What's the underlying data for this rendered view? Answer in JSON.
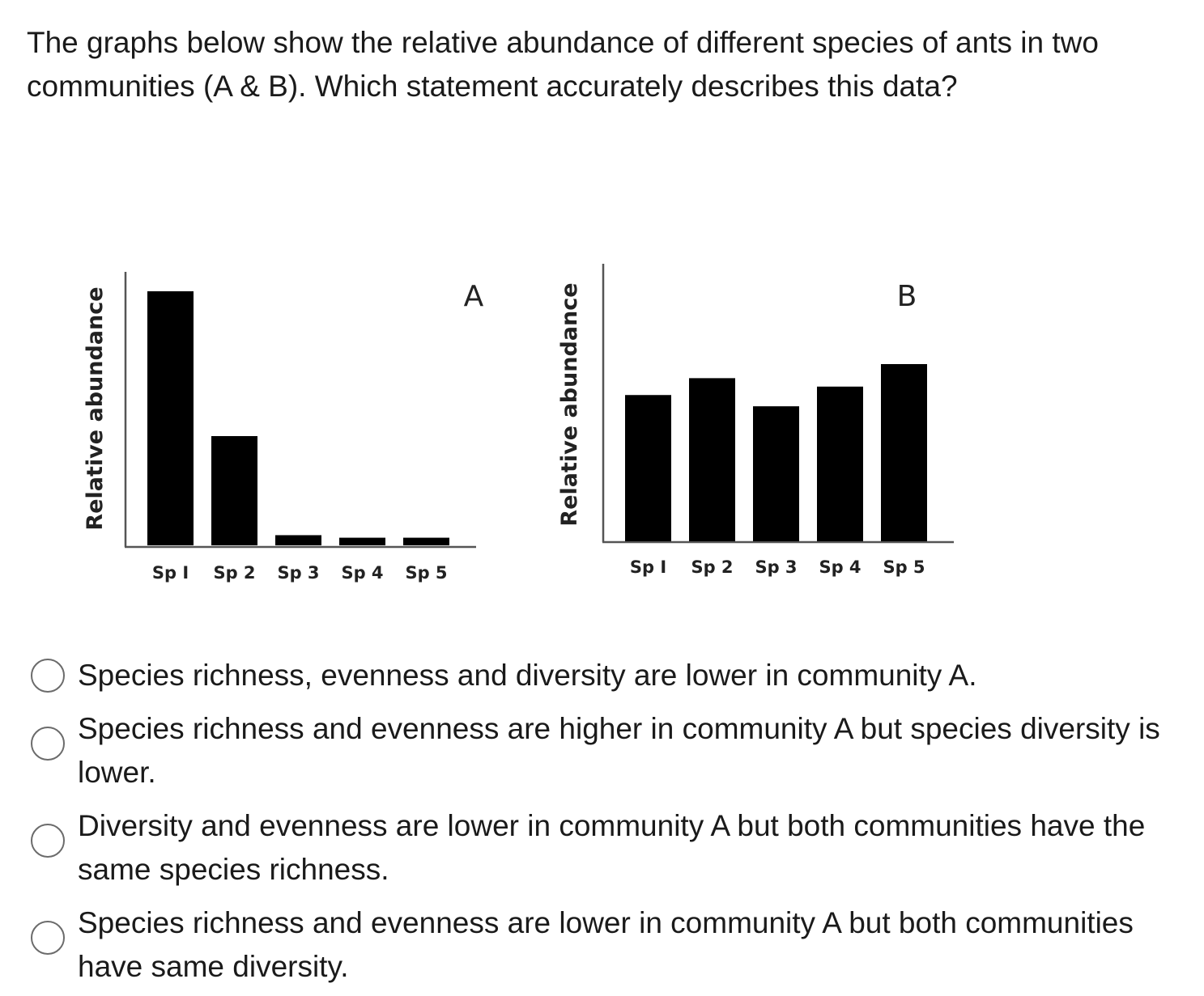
{
  "question": {
    "text": "The graphs below show the relative abundance of different species of ants in two communities (A & B). Which statement accurately describes this data?"
  },
  "chart_data": [
    {
      "type": "bar",
      "title": "A",
      "xlabel": "",
      "ylabel": "Relative abundance",
      "categories": [
        "Sp I",
        "Sp 2",
        "Sp 3",
        "Sp 4",
        "Sp 5"
      ],
      "values": [
        100,
        43,
        4,
        3,
        3
      ],
      "ylim": [
        0,
        110
      ]
    },
    {
      "type": "bar",
      "title": "B",
      "xlabel": "",
      "ylabel": "Relative abundance",
      "categories": [
        "Sp I",
        "Sp 2",
        "Sp 3",
        "Sp 4",
        "Sp 5"
      ],
      "values": [
        52,
        58,
        48,
        55,
        63
      ],
      "ylim": [
        0,
        100
      ]
    }
  ],
  "options": [
    "Species richness, evenness and diversity are lower in community A.",
    "Species richness and evenness are higher in community A but species diversity is lower.",
    "Diversity and evenness are lower in community A but both communities have the same species richness.",
    "Species richness and evenness are lower in community A but both communities have same diversity."
  ],
  "colors": {
    "bar": "#000000",
    "axis": "#555555",
    "text": "#1a1a1a"
  }
}
